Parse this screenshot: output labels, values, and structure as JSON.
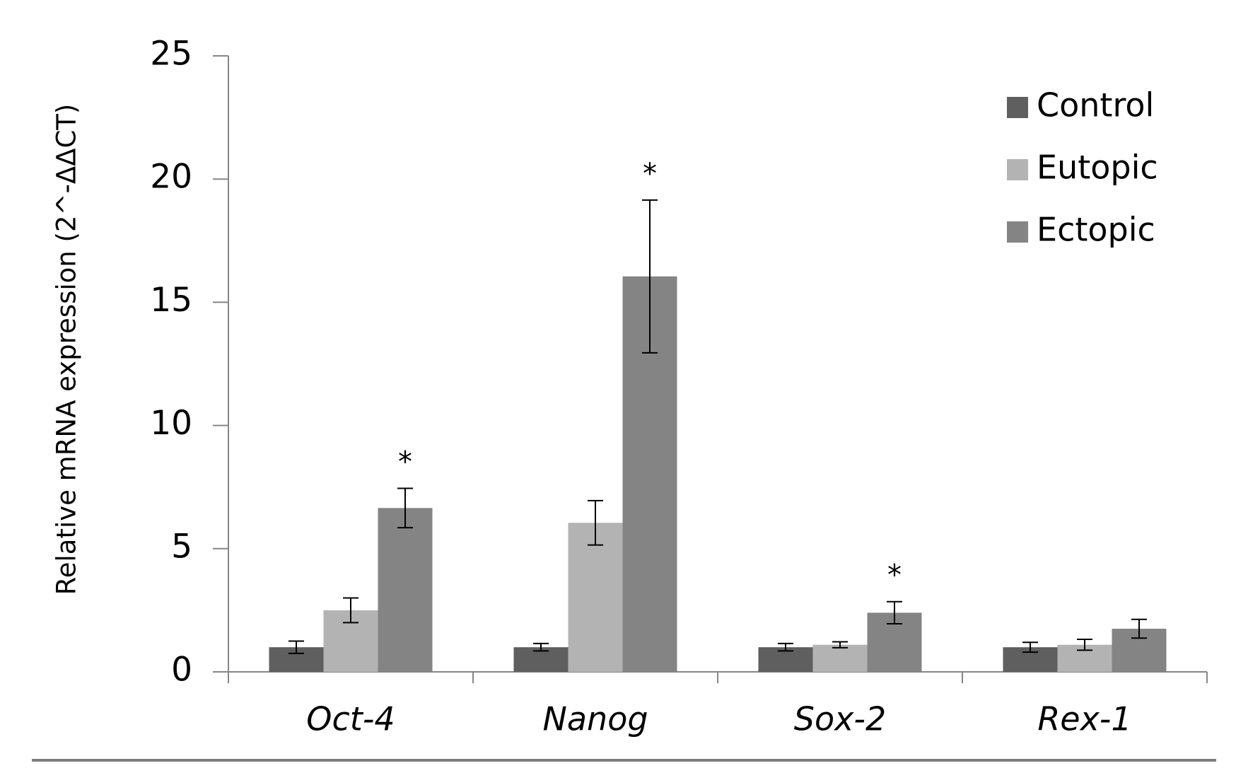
{
  "chart_data": {
    "type": "bar",
    "title": "",
    "xlabel": "",
    "ylabel": "Relative mRNA expression (2^-ΔΔCT)",
    "ylim": [
      0,
      25
    ],
    "yticks": [
      0,
      5,
      10,
      15,
      20,
      25
    ],
    "grid": false,
    "legend_position": "top-right",
    "categories": [
      "Oct-4",
      "Nanog",
      "Sox-2",
      "Rex-1"
    ],
    "series": [
      {
        "name": "Control",
        "color": "#5f5f5f",
        "values": [
          1.0,
          1.0,
          1.0,
          1.0
        ],
        "errors": [
          0.25,
          0.15,
          0.15,
          0.2
        ]
      },
      {
        "name": "Eutopic",
        "color": "#b3b3b3",
        "values": [
          2.5,
          6.05,
          1.1,
          1.1
        ],
        "errors": [
          0.5,
          0.9,
          0.12,
          0.22
        ]
      },
      {
        "name": "Ectopic",
        "color": "#848484",
        "values": [
          6.65,
          16.05,
          2.4,
          1.75
        ],
        "errors": [
          0.8,
          3.1,
          0.45,
          0.38
        ]
      }
    ],
    "annotations": [
      {
        "category": "Oct-4",
        "series": "Ectopic",
        "text": "*"
      },
      {
        "category": "Nanog",
        "series": "Ectopic",
        "text": "*"
      },
      {
        "category": "Sox-2",
        "series": "Ectopic",
        "text": "*"
      }
    ]
  }
}
